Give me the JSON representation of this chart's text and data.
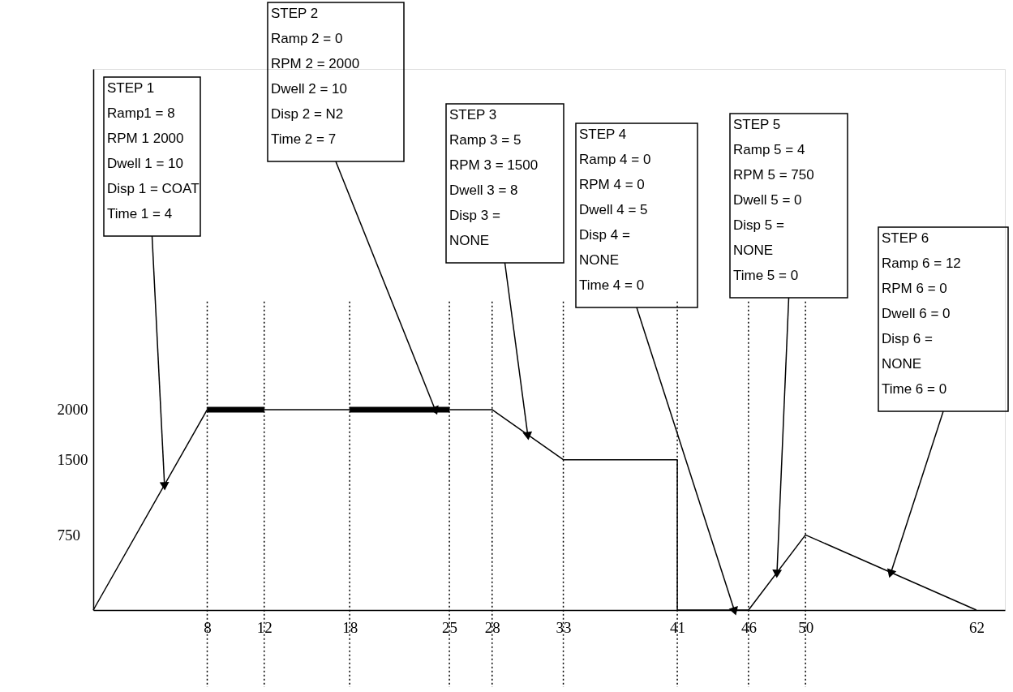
{
  "chart_data": {
    "type": "line",
    "xlim": [
      0,
      64
    ],
    "ylim": [
      0,
      5400
    ],
    "xticks": [
      8,
      12,
      18,
      25,
      28,
      33,
      41,
      46,
      50,
      62
    ],
    "yticks": [
      750,
      1500,
      2000
    ],
    "series": [
      {
        "color": "#000000",
        "x": [
          0,
          8,
          28,
          33,
          41,
          41,
          46,
          50,
          62
        ],
        "values": [
          0,
          2000,
          2000,
          1500,
          1500,
          0,
          0,
          750,
          0
        ]
      },
      {
        "color": "#000000",
        "x": [
          8,
          12
        ],
        "values": [
          2000,
          2000
        ]
      },
      {
        "color": "#000000",
        "x": [
          18,
          25
        ],
        "values": [
          2000,
          2000
        ]
      }
    ],
    "ref_lines": [
      {
        "axis": "x",
        "value": 8,
        "line_style": "dotted"
      },
      {
        "axis": "x",
        "value": 12,
        "line_style": "dotted"
      },
      {
        "axis": "x",
        "value": 18,
        "line_style": "dotted"
      },
      {
        "axis": "x",
        "value": 25,
        "line_style": "dotted"
      },
      {
        "axis": "x",
        "value": 28,
        "line_style": "dotted"
      },
      {
        "axis": "x",
        "value": 33,
        "line_style": "dotted"
      },
      {
        "axis": "x",
        "value": 41,
        "line_style": "dotted"
      },
      {
        "axis": "x",
        "value": 46,
        "line_style": "dotted"
      },
      {
        "axis": "x",
        "value": 50,
        "line_style": "dotted"
      }
    ],
    "annotations": [
      {
        "text": "STEP 1\nRamp1 = 8\nRPM 1 2000\nDwell 1 = 10\nDisp 1 = COAT\nTime 1 = 4",
        "x": 5,
        "y": 1250
      },
      {
        "text": "STEP 2\nRamp 2 = 0\nRPM 2 = 2000\nDwell 2 = 10\nDisp 2 = N2\nTime 2 = 7",
        "x": 24,
        "y": 2000
      },
      {
        "text": "STEP 3\nRamp 3 = 5\nRPM 3 = 1500\nDwell 3 = 8\nDisp 3 =\nNONE",
        "x": 30.5,
        "y": 1750
      },
      {
        "text": "STEP 4\nRamp 4 = 0\nRPM 4 = 0\nDwell 4 = 5\nDisp 4 =\nNONE\nTime 4 = 0",
        "x": 45,
        "y": 0
      },
      {
        "text": "STEP 5\nRamp 5 = 4\nRPM 5 = 750\nDwell 5 = 0\nDisp 5 =\nNONE\nTime 5 = 0",
        "x": 48,
        "y": 375
      },
      {
        "text": "STEP 6\nRamp 6 = 12\nRPM 6 = 0\nDwell 6 = 0\nDisp 6 =\nNONE\nTime 6 = 0",
        "x": 56,
        "y": 375
      }
    ],
    "grid": false,
    "marker": "none",
    "line_style": "solid"
  }
}
